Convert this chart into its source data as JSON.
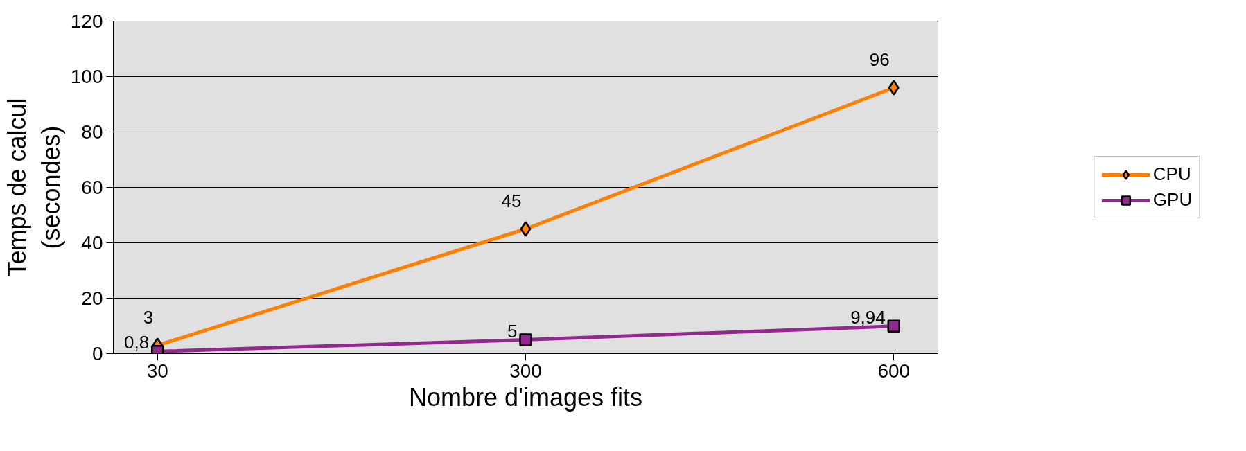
{
  "chart_data": {
    "type": "line",
    "xlabel": "Nombre d'images fits",
    "ylabel": "Temps de calcul\n(secondes)",
    "categories": [
      "30",
      "300",
      "600"
    ],
    "series": [
      {
        "name": "CPU",
        "color": "#ff8000",
        "values": [
          3,
          45,
          96
        ],
        "value_labels": [
          "3",
          "45",
          "96"
        ],
        "marker": "diamond"
      },
      {
        "name": "GPU",
        "color": "#92278f",
        "values": [
          0.8,
          5,
          9.94
        ],
        "value_labels": [
          "0,8",
          "5",
          "9,94"
        ],
        "marker": "square"
      }
    ],
    "ylim": [
      0,
      120
    ],
    "yticks": [
      0,
      20,
      40,
      60,
      80,
      100,
      120
    ],
    "grid": "y",
    "legend": "right",
    "line_style": "solid"
  }
}
